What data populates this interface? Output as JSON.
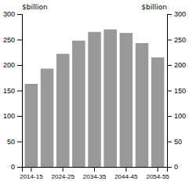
{
  "chart_data": {
    "type": "bar",
    "categories": [
      "2014-15",
      null,
      "2024-25",
      null,
      "2034-35",
      null,
      "2044-45",
      null,
      "2054-55"
    ],
    "values": [
      163,
      193,
      222,
      248,
      265,
      270,
      263,
      243,
      215
    ],
    "color": "#999999",
    "ylim": [
      0,
      300
    ],
    "yticks": [
      0,
      50,
      100,
      150,
      200,
      250,
      300
    ],
    "y2lim": [
      0,
      300
    ],
    "y2ticks": [
      0,
      50,
      100,
      150,
      200,
      250,
      300
    ],
    "ylabel": "$billion",
    "y2label": "$billion",
    "grid": false
  }
}
